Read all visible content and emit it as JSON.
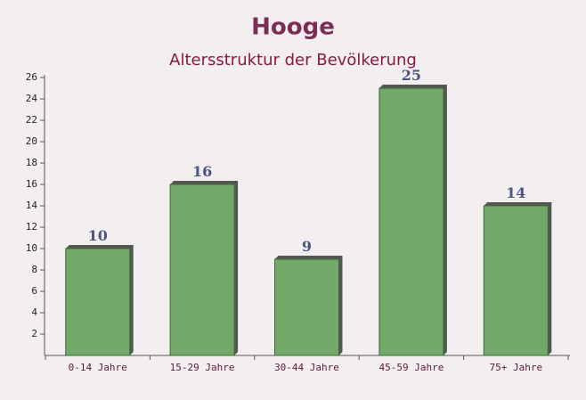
{
  "chart_data": {
    "type": "bar",
    "title": "Hooge",
    "subtitle": "Altersstruktur der Bevölkerung",
    "categories": [
      "0-14 Jahre",
      "15-29 Jahre",
      "30-44 Jahre",
      "45-59 Jahre",
      "75+ Jahre"
    ],
    "values": [
      10,
      16,
      9,
      25,
      14
    ],
    "color": "#6aa460",
    "ylim": [
      0,
      26
    ],
    "yticks": [
      2,
      4,
      6,
      8,
      10,
      12,
      14,
      16,
      18,
      20,
      22,
      24,
      26
    ]
  }
}
